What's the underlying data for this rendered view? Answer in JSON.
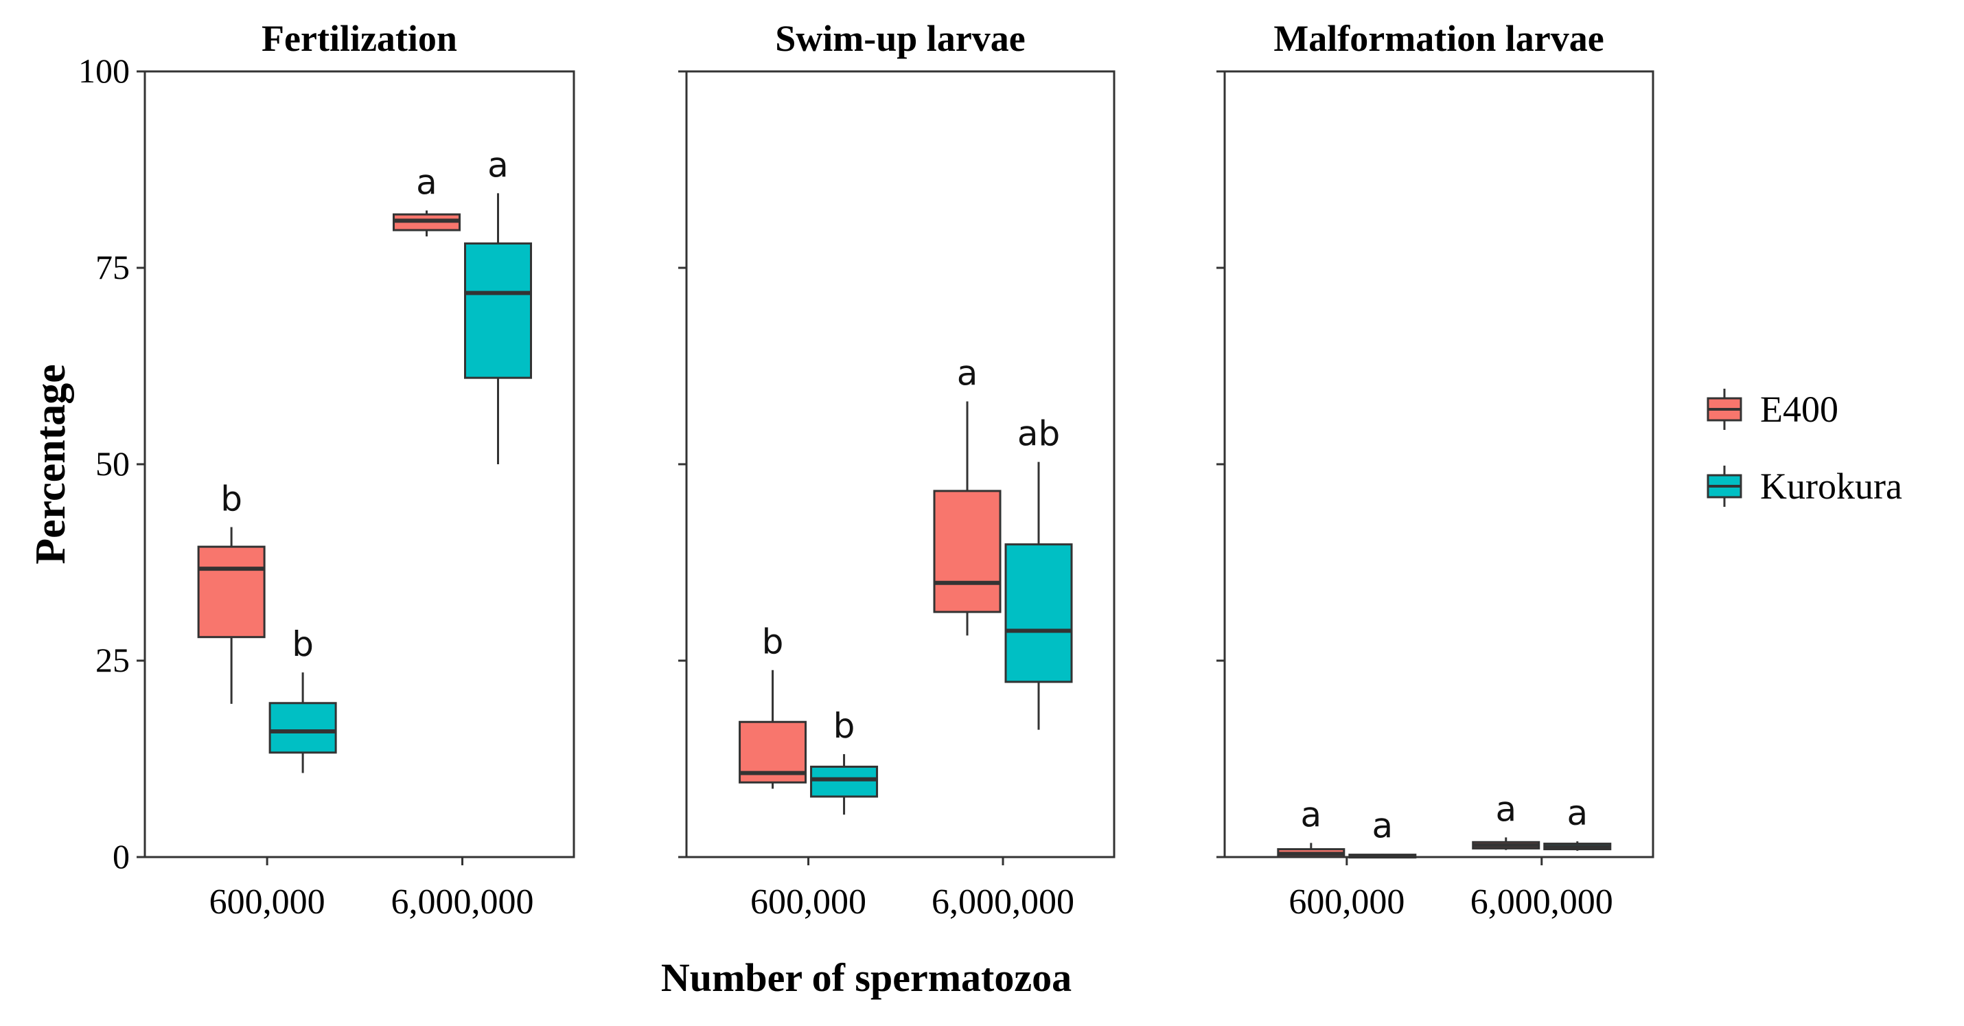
{
  "chart_data": {
    "type": "boxplot",
    "ylabel": "Percentage",
    "xlabel": "Number of spermatozoa",
    "ylim": [
      0,
      100
    ],
    "yticks": [
      "0",
      "25",
      "50",
      "75",
      "100"
    ],
    "ytick_values": [
      0,
      25,
      50,
      75,
      100
    ],
    "categories": [
      "600,000",
      "6,000,000"
    ],
    "colors": {
      "E400": "#F8766D",
      "Kurokura": "#00BFC4",
      "median": "#333333",
      "axis": "#333333"
    },
    "legend": {
      "position": "right",
      "entries": [
        {
          "label": "E400",
          "color": "#F8766D"
        },
        {
          "label": "Kurokura",
          "color": "#00BFC4"
        }
      ]
    },
    "panels": [
      {
        "title": "Fertilization",
        "series": [
          {
            "name": "E400",
            "boxes": [
              {
                "category": "600,000",
                "min": 19.5,
                "q1": 28,
                "median": 36.7,
                "q3": 39.5,
                "max": 42,
                "label": "b"
              },
              {
                "category": "6,000,000",
                "min": 79,
                "q1": 79.8,
                "median": 81,
                "q3": 81.8,
                "max": 82.3,
                "label": "a"
              }
            ]
          },
          {
            "name": "Kurokura",
            "boxes": [
              {
                "category": "600,000",
                "min": 10.7,
                "q1": 13.3,
                "median": 16,
                "q3": 19.6,
                "max": 23.5,
                "label": "b"
              },
              {
                "category": "6,000,000",
                "min": 50,
                "q1": 61,
                "median": 71.8,
                "q3": 78.1,
                "max": 84.5,
                "label": "a"
              }
            ]
          }
        ]
      },
      {
        "title": "Swim-up larvae",
        "series": [
          {
            "name": "E400",
            "boxes": [
              {
                "category": "600,000",
                "min": 8.7,
                "q1": 9.5,
                "median": 10.7,
                "q3": 17.2,
                "max": 23.8,
                "label": "b"
              },
              {
                "category": "6,000,000",
                "min": 28.2,
                "q1": 31.2,
                "median": 34.9,
                "q3": 46.6,
                "max": 58,
                "label": "a"
              }
            ]
          },
          {
            "name": "Kurokura",
            "boxes": [
              {
                "category": "600,000",
                "min": 5.4,
                "q1": 7.7,
                "median": 9.9,
                "q3": 11.5,
                "max": 13.1,
                "label": "b"
              },
              {
                "category": "6,000,000",
                "min": 16.2,
                "q1": 22.3,
                "median": 28.8,
                "q3": 39.8,
                "max": 50.3,
                "label": "ab"
              }
            ]
          }
        ]
      },
      {
        "title": "Malformation larvae",
        "series": [
          {
            "name": "E400",
            "boxes": [
              {
                "category": "600,000",
                "min": 0,
                "q1": 0,
                "median": 0.4,
                "q3": 1,
                "max": 1.8,
                "label": "a"
              },
              {
                "category": "6,000,000",
                "min": 0.9,
                "q1": 1.1,
                "median": 1.5,
                "q3": 1.9,
                "max": 2.5,
                "label": "a"
              }
            ]
          },
          {
            "name": "Kurokura",
            "boxes": [
              {
                "category": "600,000",
                "min": 0,
                "q1": 0,
                "median": 0.1,
                "q3": 0.3,
                "max": 0.4,
                "label": "a"
              },
              {
                "category": "6,000,000",
                "min": 0.8,
                "q1": 1,
                "median": 1.3,
                "q3": 1.7,
                "max": 2,
                "label": "a"
              }
            ]
          }
        ]
      }
    ]
  }
}
